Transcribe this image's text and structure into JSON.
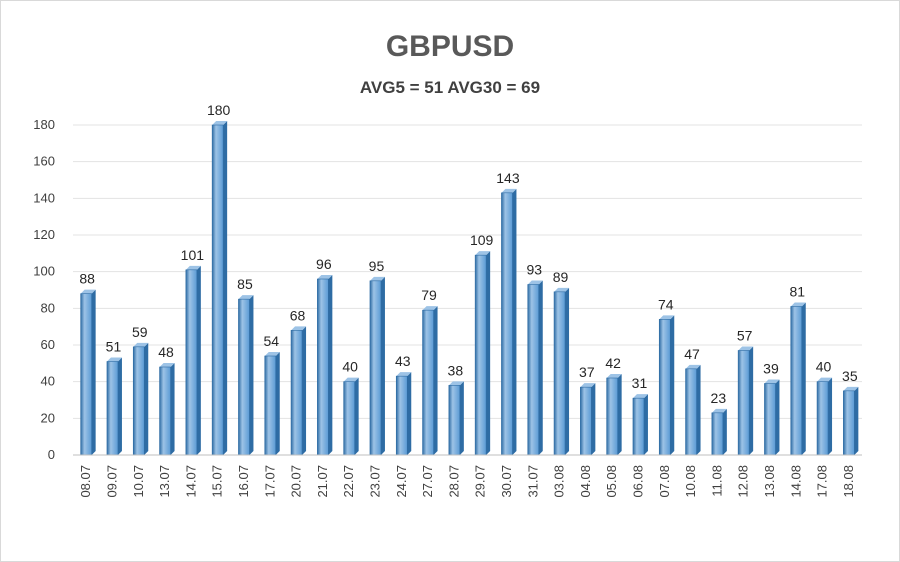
{
  "chart_data": {
    "type": "bar",
    "title": "GBPUSD",
    "subtitle": "AVG5 = 51 AVG30 = 69",
    "categories": [
      "08.07",
      "09.07",
      "10.07",
      "13.07",
      "14.07",
      "15.07",
      "16.07",
      "17.07",
      "20.07",
      "21.07",
      "22.07",
      "23.07",
      "24.07",
      "27.07",
      "28.07",
      "29.07",
      "30.07",
      "31.07",
      "03.08",
      "04.08",
      "05.08",
      "06.08",
      "07.08",
      "10.08",
      "11.08",
      "12.08",
      "13.08",
      "14.08",
      "17.08",
      "18.08"
    ],
    "values": [
      88,
      51,
      59,
      48,
      101,
      180,
      85,
      54,
      68,
      96,
      40,
      95,
      43,
      79,
      38,
      109,
      143,
      93,
      89,
      37,
      42,
      31,
      74,
      47,
      23,
      57,
      39,
      81,
      40,
      35
    ],
    "ylim": [
      0,
      180
    ],
    "yticks": [
      0,
      20,
      40,
      60,
      80,
      100,
      120,
      140,
      160,
      180
    ],
    "grid": true,
    "data_labels": true,
    "bar_color": "#5b9bd5",
    "bar_dark": "#2e6ca4",
    "bar_light": "#9dc3e6"
  }
}
